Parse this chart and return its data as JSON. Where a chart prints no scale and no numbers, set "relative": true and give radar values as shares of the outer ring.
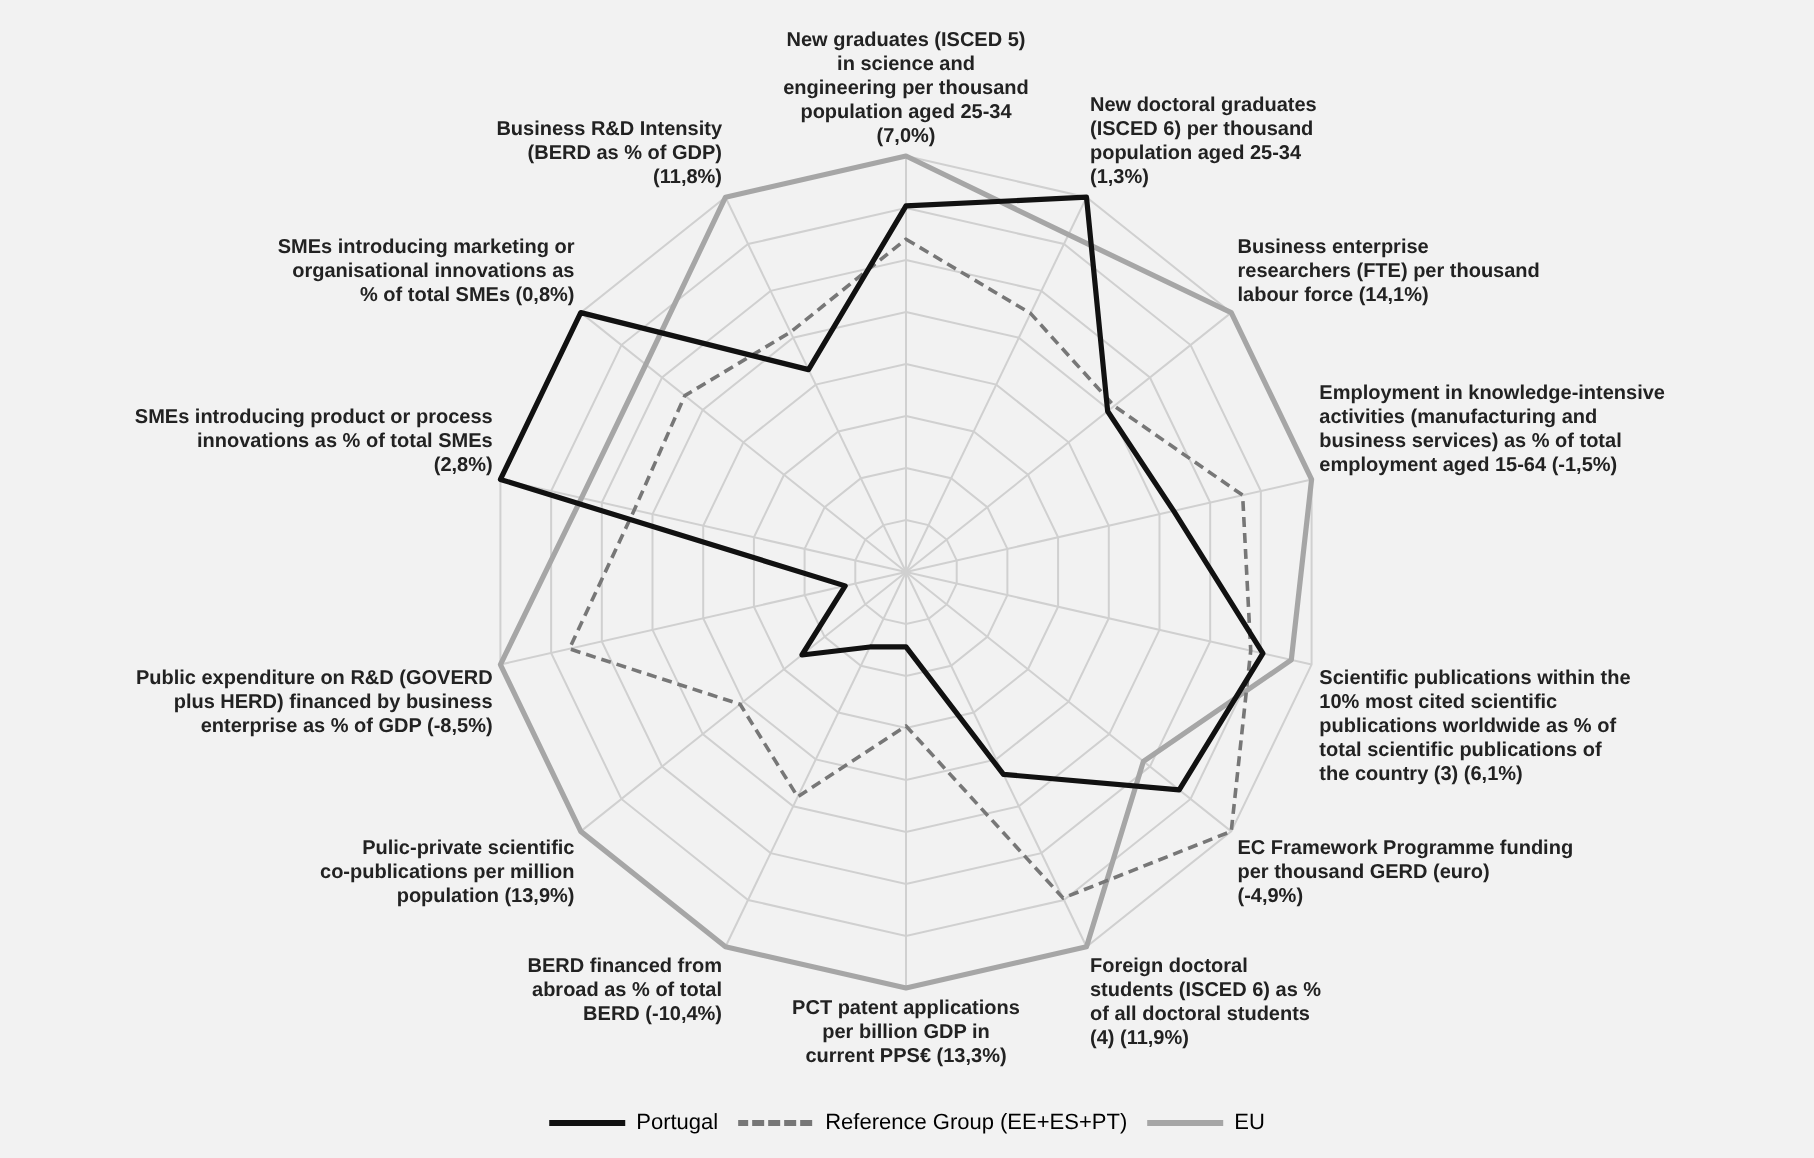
{
  "chart_data": {
    "type": "radar",
    "relative": true,
    "legend": "bottom",
    "marker": "none",
    "categories": [
      "New graduates (ISCED 5) in science and engineering per thousand population aged 25-34 (7,0%)",
      "New doctoral graduates (ISCED 6) per thousand population aged 25-34 (1,3%)",
      "Business enterprise researchers (FTE) per thousand labour force (14,1%)",
      "Employment in knowledge-intensive activities (manufacturing and business services) as % of total employment aged 15-64 (-1,5%)",
      "Scientific publications within the 10% most cited scientific publications worldwide as % of total scientific publications of the country (3) (6,1%)",
      "EC Framework Programme funding per thousand GERD (euro) (-4,9%)",
      "Foreign doctoral students (ISCED 6) as % of all doctoral students (4) (11,9%)",
      "PCT patent applications per billion GDP in current PPS€ (13,3%)",
      "BERD financed from abroad as % of total BERD (-10,4%)",
      "Pulic-private scientific co-publications per million population (13,9%)",
      "Public expenditure on R&D (GOVERD plus HERD) financed by business enterprise as % of GDP (-8,5%)",
      "SMEs introducing product or process innovations as % of total SMEs (2,8%)",
      "SMEs introducing marketing or organisational innovations as % of total SMEs (0,8%)",
      "Business R&D Intensity (BERD as % of GDP) (11,8%)"
    ],
    "series": [
      {
        "name": "Portugal",
        "color": "#111111",
        "line_style": "solid",
        "values": [
          0.88,
          1.0,
          0.62,
          0.66,
          0.88,
          0.84,
          0.54,
          0.18,
          0.2,
          0.32,
          0.15,
          1.0,
          1.0,
          0.54
        ]
      },
      {
        "name": "Reference Group (EE+ES+PT)",
        "color": "#777777",
        "line_style": "dashed",
        "values": [
          0.8,
          0.69,
          0.64,
          0.83,
          0.85,
          1.0,
          0.87,
          0.37,
          0.6,
          0.51,
          0.83,
          0.67,
          0.68,
          0.64
        ]
      },
      {
        "name": "EU",
        "color": "#a6a6a6",
        "line_style": "solid",
        "values": [
          1.0,
          0.9,
          1.0,
          1.0,
          0.95,
          0.73,
          1.0,
          1.0,
          1.0,
          1.0,
          1.0,
          0.8,
          0.8,
          1.0
        ]
      }
    ]
  }
}
